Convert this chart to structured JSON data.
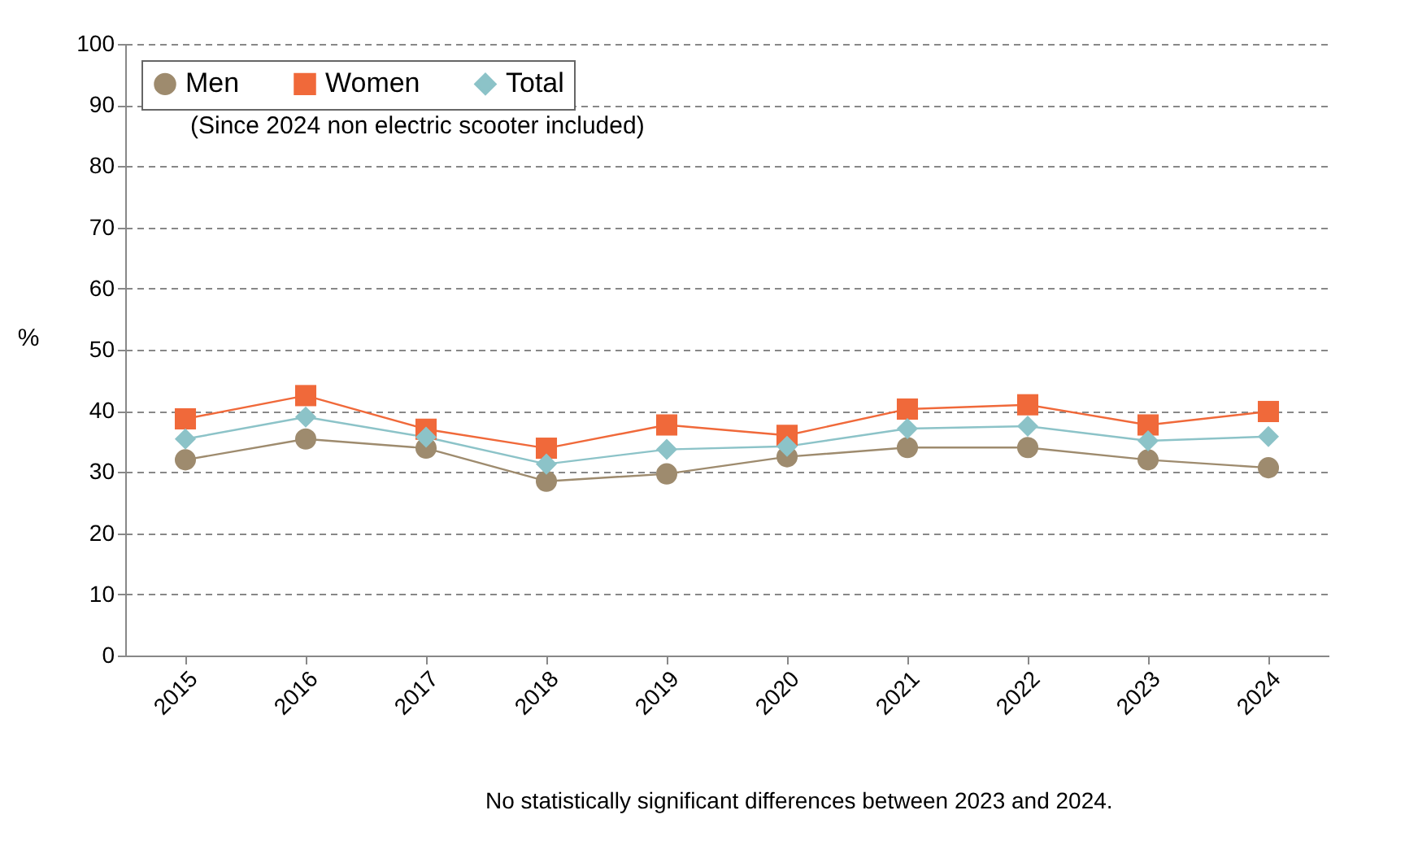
{
  "chart_data": {
    "type": "line",
    "categories": [
      "2015",
      "2016",
      "2017",
      "2018",
      "2019",
      "2020",
      "2021",
      "2022",
      "2023",
      "2024"
    ],
    "series": [
      {
        "name": "Men",
        "color": "#9e8b6e",
        "marker": "circle",
        "values": [
          32,
          35.4,
          33.9,
          28.5,
          29.7,
          32.5,
          34,
          34,
          32,
          30.7
        ]
      },
      {
        "name": "Women",
        "color": "#f0693a",
        "marker": "square",
        "values": [
          38.7,
          42.5,
          37,
          33.9,
          37.7,
          36,
          40.3,
          41,
          37.7,
          39.9
        ]
      },
      {
        "name": "Total",
        "color": "#8cc3c8",
        "marker": "diamond",
        "values": [
          35.4,
          39,
          35.7,
          31.3,
          33.7,
          34.2,
          37.1,
          37.5,
          35.1,
          35.8
        ]
      }
    ],
    "ylabel": "%",
    "ylim": [
      0,
      100
    ],
    "yticks": [
      0,
      10,
      20,
      30,
      40,
      50,
      60,
      70,
      80,
      90,
      100
    ],
    "grid": "y",
    "legend": "top left",
    "annotations": [
      "(Since 2024 non electric scooter included)",
      "No statistically significant differences between 2023 and 2024."
    ]
  }
}
